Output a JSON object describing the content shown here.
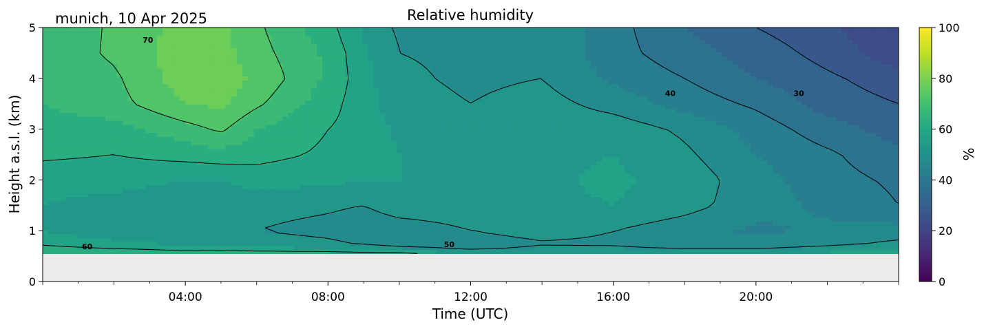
{
  "chart_data": {
    "type": "heatmap",
    "title": "Relative humidity",
    "location_label": "munich, 10 Apr 2025",
    "xlabel": "Time (UTC)",
    "ylabel": "Height a.s.l. (km)",
    "xlim": [
      0,
      24
    ],
    "ylim": [
      0,
      5
    ],
    "x_ticks": [
      {
        "value": 4,
        "label": "04:00"
      },
      {
        "value": 8,
        "label": "08:00"
      },
      {
        "value": 12,
        "label": "12:00"
      },
      {
        "value": 16,
        "label": "16:00"
      },
      {
        "value": 20,
        "label": "20:00"
      }
    ],
    "y_ticks": [
      {
        "value": 0,
        "label": "0"
      },
      {
        "value": 1,
        "label": "1"
      },
      {
        "value": 2,
        "label": "2"
      },
      {
        "value": 3,
        "label": "3"
      },
      {
        "value": 4,
        "label": "4"
      },
      {
        "value": 5,
        "label": "5"
      }
    ],
    "colorbar": {
      "label": "%",
      "range": [
        0,
        100
      ],
      "colormap": "viridis",
      "ticks": [
        {
          "value": 0,
          "label": "0"
        },
        {
          "value": 20,
          "label": "20"
        },
        {
          "value": 40,
          "label": "40"
        },
        {
          "value": 60,
          "label": "60"
        },
        {
          "value": 80,
          "label": "80"
        },
        {
          "value": 100,
          "label": "100"
        }
      ]
    },
    "data_bottom_height_km": 0.55,
    "no_data_color": "#ebebeb",
    "heights_km": [
      0.55,
      0.7,
      1.0,
      1.5,
      2.0,
      2.5,
      3.0,
      3.5,
      4.0,
      4.5,
      5.0
    ],
    "times_h": [
      0,
      2,
      4,
      5,
      6,
      8,
      9,
      10,
      12,
      14,
      16,
      18,
      20,
      22,
      24
    ],
    "humidity_pct": [
      [
        65,
        66,
        63,
        64,
        63,
        63,
        62,
        62,
        54,
        55,
        55,
        56,
        56,
        57,
        58
      ],
      [
        60,
        57,
        55,
        55,
        54,
        52,
        50,
        47,
        47,
        49,
        49,
        47,
        47,
        49,
        52
      ],
      [
        55,
        52,
        50,
        50,
        50,
        48,
        46,
        47,
        50,
        52,
        50,
        47,
        44,
        46,
        47
      ],
      [
        55,
        53,
        51,
        51,
        52,
        51,
        50,
        53,
        53,
        54,
        55,
        52,
        47,
        44,
        40
      ],
      [
        57,
        57,
        55,
        55,
        57,
        56,
        55,
        55,
        53,
        54,
        56,
        53,
        47,
        42,
        39
      ],
      [
        61,
        60,
        62,
        63,
        62,
        59,
        58,
        55,
        53,
        54,
        55,
        51,
        45,
        41,
        36
      ],
      [
        63,
        63,
        68,
        71,
        65,
        60,
        58,
        54,
        52,
        53,
        53,
        49,
        43,
        37,
        33
      ],
      [
        65,
        68,
        75,
        76,
        71,
        62,
        57,
        52,
        50,
        52,
        48,
        43,
        39,
        33,
        30
      ],
      [
        66,
        69,
        78,
        78,
        74,
        64,
        57,
        51,
        49,
        50,
        44,
        40,
        35,
        31,
        27
      ],
      [
        66,
        71,
        78,
        77,
        72,
        64,
        56,
        50,
        49,
        49,
        42,
        37,
        33,
        28,
        22
      ],
      [
        65,
        71,
        77,
        76,
        71,
        62,
        54,
        49,
        48,
        49,
        42,
        35,
        30,
        26,
        20
      ]
    ],
    "contour_levels": [
      30,
      40,
      50,
      60,
      70
    ],
    "contour_labels": [
      {
        "text": "60",
        "time_h": 1.25,
        "height_km": 0.64
      },
      {
        "text": "50",
        "time_h": 11.4,
        "height_km": 0.68
      },
      {
        "text": "70",
        "time_h": 2.95,
        "height_km": 4.7
      },
      {
        "text": "40",
        "time_h": 17.6,
        "height_km": 3.65
      },
      {
        "text": "30",
        "time_h": 21.2,
        "height_km": 3.65
      }
    ]
  }
}
